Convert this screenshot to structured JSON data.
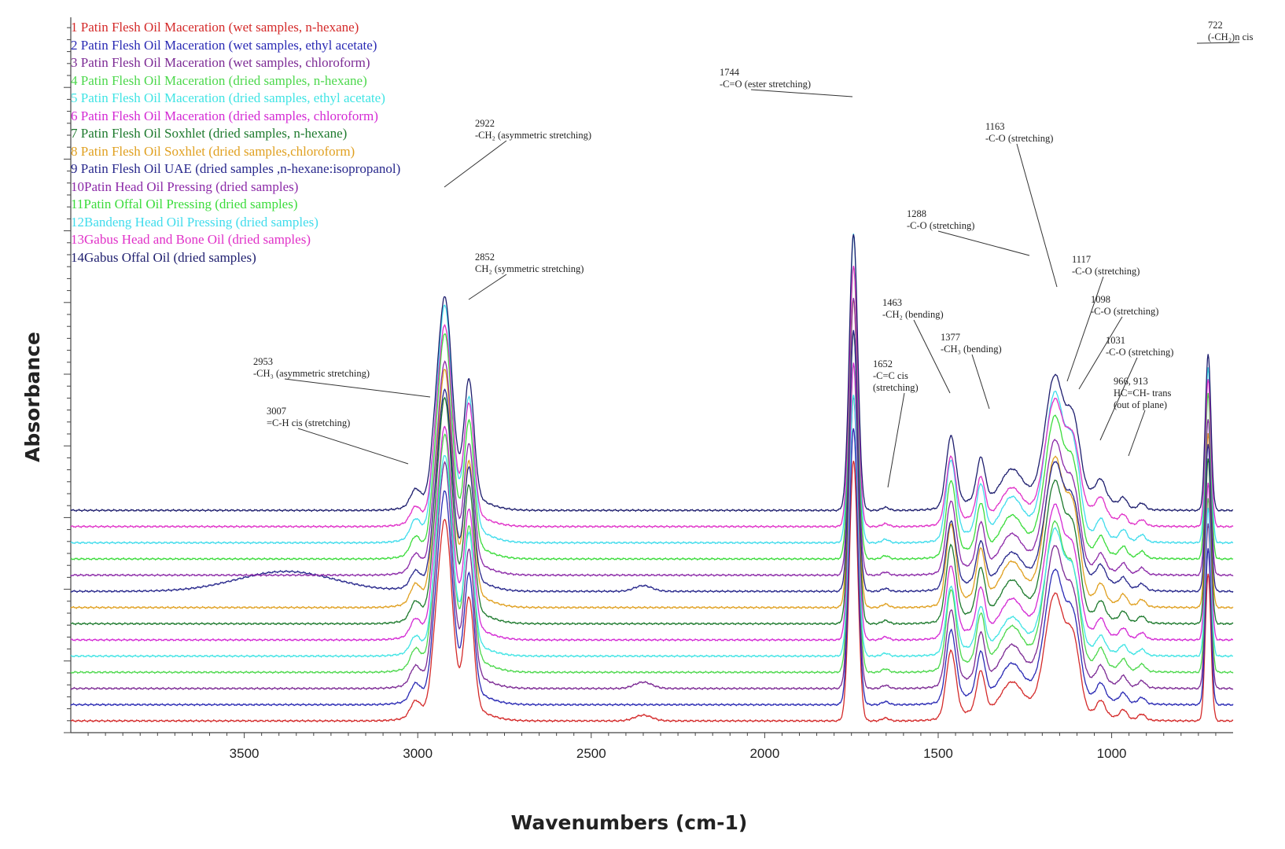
{
  "chart_data": {
    "type": "line",
    "xlabel": "Wavenumbers (cm-1)",
    "ylabel": "Absorbance",
    "x_ticks": [
      3500,
      3000,
      2500,
      2000,
      1500,
      1000
    ],
    "xlim": [
      4000,
      650
    ],
    "x_direction": "reversed",
    "y_tick_labels": false,
    "y_scale": "arbitrary units, spectra stacked with vertical offsets",
    "series": [
      {
        "name": "Patin Flesh Oil Maceration (wet samples, n-hexane)",
        "number": "1",
        "color": "#d42a2a",
        "offset": 0
      },
      {
        "name": "Patin Flesh Oil Maceration (wet samples, ethyl acetate)",
        "number": "2",
        "color": "#2a2ab4",
        "offset": 1
      },
      {
        "name": "Patin Flesh Oil Maceration (wet samples, chloroform)",
        "number": "3",
        "color": "#7c2a94",
        "offset": 2
      },
      {
        "name": "Patin Flesh Oil Maceration (dried samples, n-hexane)",
        "number": "4",
        "color": "#4cd84c",
        "offset": 3
      },
      {
        "name": "Patin Flesh Oil Maceration (dried samples, ethyl acetate)",
        "number": "5",
        "color": "#40e4e4",
        "offset": 4
      },
      {
        "name": "Patin Flesh Oil Maceration (dried samples, chloroform)",
        "number": "6",
        "color": "#d42ad4",
        "offset": 5
      },
      {
        "name": "Patin Flesh Oil Soxhlet (dried samples, n-hexane)",
        "number": "7",
        "color": "#1e7a2e",
        "offset": 6
      },
      {
        "name": "Patin Flesh Oil Soxhlet (dried samples,chloroform)",
        "number": "8",
        "color": "#e0a020",
        "offset": 7
      },
      {
        "name": "Patin Flesh Oil UAE (dried samples ,n-hexane:isopropanol)",
        "number": "9",
        "color": "#28288c",
        "offset": 8
      },
      {
        "name": "Patin Head Oil Pressing (dried samples)",
        "number": "10",
        "color": "#8c2aa8",
        "offset": 9
      },
      {
        "name": "Patin Offal Oil Pressing (dried samples)",
        "number": "11",
        "color": "#3cdc3c",
        "offset": 10
      },
      {
        "name": "Bandeng Head Oil Pressing (dried samples)",
        "number": "12",
        "color": "#40dcec",
        "offset": 11
      },
      {
        "name": "Gabus Head and Bone Oil (dried samples)",
        "number": "13",
        "color": "#e030c8",
        "offset": 12
      },
      {
        "name": "Gabus Offal Oil (dried samples)",
        "number": "14",
        "color": "#1e1e6e",
        "offset": 13
      }
    ],
    "peaks": [
      {
        "x": 3007,
        "width": 14,
        "height": 0.25
      },
      {
        "x": 2953,
        "width": 12,
        "height": 0.4
      },
      {
        "x": 2922,
        "width": 20,
        "height": 3.2
      },
      {
        "x": 2852,
        "width": 14,
        "height": 1.9
      },
      {
        "x": 1744,
        "width": 12,
        "height": 4.6
      },
      {
        "x": 1652,
        "width": 10,
        "height": 0.05
      },
      {
        "x": 1463,
        "width": 14,
        "height": 1.15
      },
      {
        "x": 1377,
        "width": 12,
        "height": 0.7
      },
      {
        "x": 1288,
        "width": 30,
        "height": 0.5
      },
      {
        "x": 1163,
        "width": 28,
        "height": 2.0
      },
      {
        "x": 1117,
        "width": 14,
        "height": 0.7
      },
      {
        "x": 1098,
        "width": 14,
        "height": 0.6
      },
      {
        "x": 1031,
        "width": 12,
        "height": 0.25
      },
      {
        "x": 966,
        "width": 10,
        "height": 0.15
      },
      {
        "x": 913,
        "width": 10,
        "height": 0.1
      },
      {
        "x": 722,
        "width": 8,
        "height": 2.6
      }
    ],
    "annotations": [
      {
        "id": "722",
        "lines": [
          "722",
          "(-CH₂)n cis"
        ],
        "x": 722
      },
      {
        "id": "1744",
        "lines": [
          "1744",
          "-C=O (ester stretching)"
        ],
        "x": 1744
      },
      {
        "id": "1163",
        "lines": [
          "1163",
          "-C-O (stretching)"
        ],
        "x": 1163
      },
      {
        "id": "2922",
        "lines": [
          "2922",
          "-CH₂ (asymmetric stretching)"
        ],
        "x": 2922
      },
      {
        "id": "1288",
        "lines": [
          "1288",
          "-C-O (stretching)"
        ],
        "x": 1288
      },
      {
        "id": "2852",
        "lines": [
          "2852",
          "CH₂ (symmetric stretching)"
        ],
        "x": 2852
      },
      {
        "id": "1117",
        "lines": [
          "1117",
          "-C-O (stretching)"
        ],
        "x": 1117
      },
      {
        "id": "1463",
        "lines": [
          "1463",
          "-CH₂ (bending)"
        ],
        "x": 1463
      },
      {
        "id": "1098",
        "lines": [
          "1098",
          "-C-O (stretching)"
        ],
        "x": 1098
      },
      {
        "id": "1377",
        "lines": [
          "1377",
          "-CH₃ (bending)"
        ],
        "x": 1377
      },
      {
        "id": "1031",
        "lines": [
          "1031",
          "-C-O (stretching)"
        ],
        "x": 1031
      },
      {
        "id": "2953",
        "lines": [
          "2953",
          "-CH₃ (asymmetric stretching)"
        ],
        "x": 2953
      },
      {
        "id": "1652",
        "lines": [
          "1652",
          "-C=C cis",
          "(stretching)"
        ],
        "x": 1652
      },
      {
        "id": "966-913",
        "lines": [
          "966, 913",
          "HC=CH- trans",
          "(out of plane)"
        ],
        "x": 966
      },
      {
        "id": "3007",
        "lines": [
          "3007",
          "=C-H cis (stretching)"
        ],
        "x": 3007
      }
    ]
  }
}
